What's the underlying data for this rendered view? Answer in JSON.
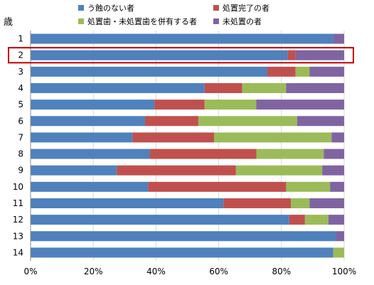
{
  "chart_data": {
    "type": "bar",
    "orientation": "horizontal",
    "stacked": true,
    "ylabel": "歳",
    "categories": [
      "1",
      "2",
      "3",
      "4",
      "5",
      "6",
      "7",
      "8",
      "9",
      "10",
      "11",
      "12",
      "13",
      "14"
    ],
    "series": [
      {
        "name": "う蝕のない者",
        "color": "#4F81BD",
        "values": [
          96.5,
          82,
          75.5,
          55.5,
          39.5,
          36.5,
          32.5,
          38,
          27.5,
          37.5,
          61.5,
          82.5,
          97.5,
          96.5
        ]
      },
      {
        "name": "処置完了の者",
        "color": "#C0504D",
        "values": [
          0,
          2.5,
          9,
          12,
          16,
          17,
          26,
          34,
          38,
          44,
          21.5,
          5,
          0,
          0
        ]
      },
      {
        "name": "処置歯・未処置歯を併有する者",
        "color": "#9BBB59",
        "values": [
          0,
          0,
          4.5,
          14,
          16.5,
          31.5,
          37.5,
          21.5,
          27.5,
          14,
          6,
          7.5,
          0,
          3.5
        ]
      },
      {
        "name": "未処置の者",
        "color": "#8064A2",
        "values": [
          3.5,
          15.5,
          11,
          18.5,
          28,
          15,
          4,
          6.5,
          7,
          4.5,
          11,
          5,
          2.5,
          0
        ]
      }
    ],
    "xlim": [
      0,
      100
    ],
    "xticks": [
      "0%",
      "20%",
      "40%",
      "60%",
      "80%",
      "100%"
    ],
    "grid": true,
    "legend": "top",
    "highlight": {
      "category": "2",
      "color": "#C00000"
    }
  }
}
